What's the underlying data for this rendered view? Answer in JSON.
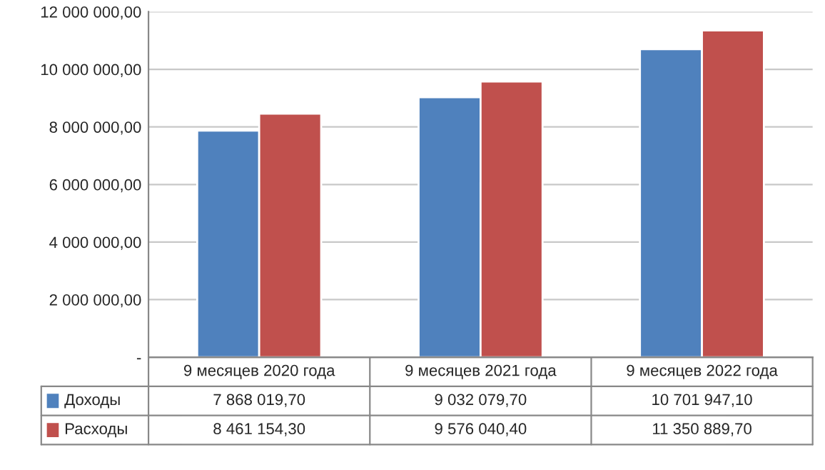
{
  "chart_data": {
    "type": "bar",
    "categories": [
      "9 месяцев 2020 года",
      "9 месяцев 2021 года",
      "9 месяцев 2022 года"
    ],
    "series": [
      {
        "name": "Доходы",
        "color": "#4f81bd",
        "values": [
          7868019.7,
          9032079.7,
          10701947.1
        ],
        "value_labels": [
          "7 868 019,70",
          "9 032 079,70",
          "10 701 947,10"
        ]
      },
      {
        "name": "Расходы",
        "color": "#c0504d",
        "values": [
          8461154.3,
          9576040.4,
          11350889.7
        ],
        "value_labels": [
          "8 461 154,30",
          "9 576 040,40",
          "11 350 889,70"
        ]
      }
    ],
    "ylim": [
      0,
      12000000
    ],
    "yticks": [
      {
        "value": 0,
        "label": "-"
      },
      {
        "value": 2000000,
        "label": "2 000 000,00"
      },
      {
        "value": 4000000,
        "label": "4 000 000,00"
      },
      {
        "value": 6000000,
        "label": "6 000 000,00"
      },
      {
        "value": 8000000,
        "label": "8 000 000,00"
      },
      {
        "value": 10000000,
        "label": "10 000 000,00"
      },
      {
        "value": 12000000,
        "label": "12 000 000,00"
      }
    ],
    "grid": "y",
    "legend": "bottom"
  }
}
